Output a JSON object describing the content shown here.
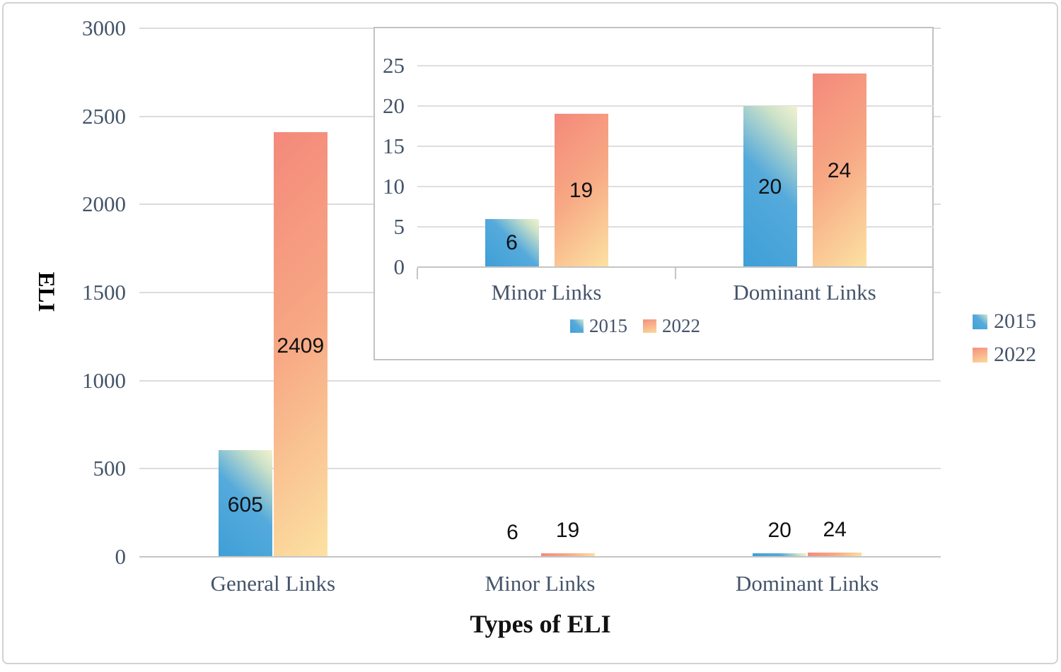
{
  "figure": {
    "background": "#ffffff",
    "border_color": "#d2d2d2"
  },
  "chart_data": {
    "type": "bar",
    "title": "",
    "xlabel": "Types of ELI",
    "ylabel": "ELI",
    "categories": [
      "General Links",
      "Minor Links",
      "Dominant Links"
    ],
    "series": [
      {
        "name": "2015",
        "values": [
          605,
          6,
          20
        ],
        "gradient": {
          "dir": "45deg",
          "stops": [
            "#3E9FD7",
            "#55AADB",
            "#CDE2C8",
            "#F2F2CF"
          ],
          "pos": [
            0,
            52,
            85,
            100
          ]
        },
        "legend_gradient": {
          "dir": "45deg",
          "stops": [
            "#41A1D8",
            "#55AADB",
            "#D5E8CC"
          ],
          "pos": [
            0,
            55,
            100
          ]
        }
      },
      {
        "name": "2022",
        "values": [
          2409,
          19,
          24
        ],
        "gradient": {
          "dir": "135deg",
          "stops": [
            "#F4897B",
            "#F7A884",
            "#FCE2A2"
          ],
          "pos": [
            0,
            48,
            100
          ]
        },
        "legend_gradient": {
          "dir": "165deg",
          "stops": [
            "#F5907E",
            "#FBD99B"
          ],
          "pos": [
            0,
            100
          ]
        }
      }
    ],
    "data_labels": true,
    "ylim": [
      0,
      3000
    ],
    "yticks": [
      0,
      500,
      1000,
      1500,
      2000,
      2500,
      3000
    ],
    "grid": true,
    "legend_position": "right",
    "inset": {
      "type": "bar",
      "categories": [
        "Minor Links",
        "Dominant Links"
      ],
      "series": [
        {
          "name": "2015",
          "values": [
            6,
            20
          ]
        },
        {
          "name": "2022",
          "values": [
            19,
            24
          ]
        }
      ],
      "data_labels": true,
      "ylim": [
        0,
        25
      ],
      "yticks": [
        0,
        5,
        10,
        15,
        20,
        25
      ],
      "grid": true,
      "legend_position": "bottom"
    },
    "colors": {
      "gridline": "#dcdcdc",
      "axis_line": "#c5c5c5",
      "tick_text": "#44546A",
      "data_label_text": "#111111",
      "axis_title_text": "#111111"
    }
  }
}
